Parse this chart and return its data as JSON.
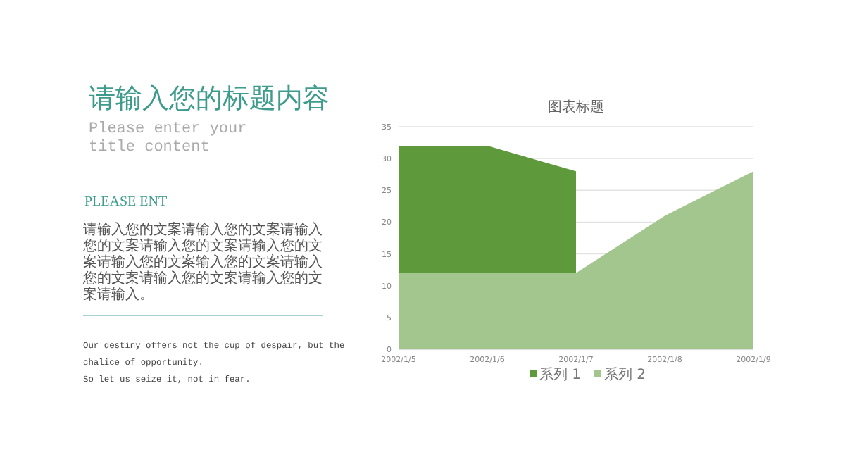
{
  "chart_data": {
    "type": "area",
    "title": "图表标题",
    "categories": [
      "2002/1/5",
      "2002/1/6",
      "2002/1/7",
      "2002/1/8",
      "2002/1/9"
    ],
    "series": [
      {
        "name": "系列 1",
        "color": "#5e9a3c",
        "values": [
          32,
          32,
          28,
          null,
          null
        ]
      },
      {
        "name": "系列 2",
        "color": "#a3c68f",
        "values": [
          12,
          12,
          12,
          21,
          28
        ]
      }
    ],
    "ylim": [
      0,
      35
    ],
    "yticks": [
      0,
      5,
      10,
      15,
      20,
      25,
      30,
      35
    ],
    "grid": "y",
    "legend": "bottom",
    "annotations": [
      "请输入您的标题内容",
      "Please enter your title content",
      "PLEASE ENT",
      "请输入您的文案请输入您的文案请输入您的文案请输入您的文案请输入您的文案请输入您的文案输入您的文案请输入您的文案请输入您的文案请输入您的文案请输入。",
      "Our destiny offers not the cup of despair, but the chalice of opportunity.",
      "So let us seize it, not in fear."
    ]
  }
}
